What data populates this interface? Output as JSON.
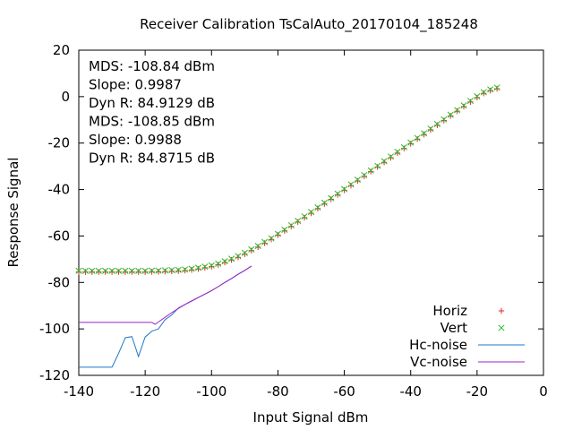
{
  "chart_data": {
    "type": "scatter",
    "title": "Receiver Calibration TsCalAuto_20170104_185248",
    "xlabel": "Input Signal dBm",
    "ylabel": "Response Signal",
    "xlim": [
      -140,
      0
    ],
    "ylim": [
      -120,
      20
    ],
    "xticks": [
      -140,
      -120,
      -100,
      -80,
      -60,
      -40,
      -20,
      0
    ],
    "yticks": [
      -120,
      -100,
      -80,
      -60,
      -40,
      -20,
      0,
      20
    ],
    "grid": false,
    "legend_position": "bottom-right",
    "annotations": [
      {
        "text": "MDS: -108.84 dBm",
        "color": "#e8242a"
      },
      {
        "text": "Slope: 0.9987",
        "color": "#e8242a"
      },
      {
        "text": "Dyn R: 84.9129 dB",
        "color": "#e8242a"
      },
      {
        "text": "MDS: -108.85 dBm",
        "color": "#2ab82a"
      },
      {
        "text": "Slope: 0.9988",
        "color": "#2ab82a"
      },
      {
        "text": "Dyn R: 84.8715 dB",
        "color": "#2ab82a"
      }
    ],
    "series": [
      {
        "name": "Horiz",
        "kind": "points",
        "marker": "plus",
        "color": "#e8242a",
        "x": [
          -140,
          -138,
          -136,
          -134,
          -132,
          -130,
          -128,
          -126,
          -124,
          -122,
          -120,
          -118,
          -116,
          -114,
          -112,
          -110,
          -108,
          -106,
          -104,
          -102,
          -100,
          -98,
          -96,
          -94,
          -92,
          -90,
          -88,
          -86,
          -84,
          -82,
          -80,
          -78,
          -76,
          -74,
          -72,
          -70,
          -68,
          -66,
          -64,
          -62,
          -60,
          -58,
          -56,
          -54,
          -52,
          -50,
          -48,
          -46,
          -44,
          -42,
          -40,
          -38,
          -36,
          -34,
          -32,
          -30,
          -28,
          -26,
          -24,
          -22,
          -20,
          -18,
          -16,
          -14
        ],
        "y": [
          -75.5,
          -75.5,
          -75.5,
          -75.5,
          -75.5,
          -75.5,
          -75.5,
          -75.5,
          -75.5,
          -75.5,
          -75.5,
          -75.4,
          -75.4,
          -75.3,
          -75.2,
          -75.1,
          -74.9,
          -74.6,
          -74.2,
          -73.7,
          -73.2,
          -72.4,
          -71.4,
          -70.3,
          -69.2,
          -67.8,
          -66.3,
          -64.8,
          -63.1,
          -61.5,
          -59.6,
          -57.8,
          -55.9,
          -54.0,
          -52.1,
          -50.2,
          -48.2,
          -46.2,
          -44.2,
          -42.3,
          -40.3,
          -38.3,
          -36.3,
          -34.3,
          -32.3,
          -30.3,
          -28.3,
          -26.3,
          -24.3,
          -22.3,
          -20.3,
          -18.3,
          -16.3,
          -14.3,
          -12.3,
          -10.3,
          -8.3,
          -6.3,
          -4.3,
          -2.3,
          -0.4,
          1.4,
          2.6,
          3.4
        ]
      },
      {
        "name": "Vert",
        "kind": "points",
        "marker": "cross",
        "color": "#2ab82a",
        "x": [
          -140,
          -138,
          -136,
          -134,
          -132,
          -130,
          -128,
          -126,
          -124,
          -122,
          -120,
          -118,
          -116,
          -114,
          -112,
          -110,
          -108,
          -106,
          -104,
          -102,
          -100,
          -98,
          -96,
          -94,
          -92,
          -90,
          -88,
          -86,
          -84,
          -82,
          -80,
          -78,
          -76,
          -74,
          -72,
          -70,
          -68,
          -66,
          -64,
          -62,
          -60,
          -58,
          -56,
          -54,
          -52,
          -50,
          -48,
          -46,
          -44,
          -42,
          -40,
          -38,
          -36,
          -34,
          -32,
          -30,
          -28,
          -26,
          -24,
          -22,
          -20,
          -18,
          -16,
          -14
        ],
        "y": [
          -75.0,
          -75.0,
          -75.0,
          -75.0,
          -75.0,
          -75.0,
          -75.0,
          -75.0,
          -75.0,
          -75.0,
          -75.0,
          -74.9,
          -74.9,
          -74.8,
          -74.7,
          -74.6,
          -74.4,
          -74.1,
          -73.7,
          -73.2,
          -72.7,
          -71.9,
          -70.9,
          -69.8,
          -68.7,
          -67.3,
          -65.8,
          -64.3,
          -62.6,
          -61.0,
          -59.1,
          -57.3,
          -55.4,
          -53.5,
          -51.6,
          -49.7,
          -47.7,
          -45.7,
          -43.7,
          -41.8,
          -39.8,
          -37.8,
          -35.8,
          -33.8,
          -31.8,
          -29.8,
          -27.8,
          -25.8,
          -23.8,
          -21.8,
          -19.8,
          -17.8,
          -15.8,
          -13.8,
          -11.8,
          -9.8,
          -7.8,
          -5.8,
          -3.8,
          -1.8,
          0.1,
          1.9,
          3.1,
          3.9
        ]
      },
      {
        "name": "Hc-noise",
        "kind": "line",
        "color": "#1f77c8",
        "x": [
          -140,
          -138,
          -136,
          -134,
          -132,
          -130,
          -128,
          -126,
          -124,
          -122,
          -120,
          -118,
          -116,
          -114,
          -112,
          -110,
          -108,
          -106,
          -104,
          -102,
          -100,
          -98,
          -96,
          -94,
          -92,
          -90,
          -88
        ],
        "y": [
          -116.5,
          -116.5,
          -116.5,
          -116.5,
          -116.5,
          -116.5,
          -110.5,
          -103.8,
          -103.3,
          -111.9,
          -103.5,
          -101.0,
          -100.0,
          -96.0,
          -94.0,
          -91.0,
          -89.5,
          -88.0,
          -86.5,
          -85.0,
          -83.5,
          -81.8,
          -80.0,
          -78.3,
          -76.5,
          -74.8,
          -73.0
        ]
      },
      {
        "name": "Vc-noise",
        "kind": "line",
        "color": "#a020c8",
        "x": [
          -140,
          -138,
          -136,
          -134,
          -132,
          -130,
          -128,
          -126,
          -124,
          -122,
          -120,
          -118,
          -117,
          -116,
          -114,
          -112,
          -110,
          -108,
          -106,
          -104,
          -102,
          -100,
          -98,
          -96,
          -94,
          -92,
          -90,
          -88
        ],
        "y": [
          -97.2,
          -97.2,
          -97.2,
          -97.2,
          -97.2,
          -97.2,
          -97.2,
          -97.2,
          -97.2,
          -97.2,
          -97.2,
          -97.2,
          -98.0,
          -97.0,
          -95.0,
          -93.0,
          -91.2,
          -89.5,
          -88.0,
          -86.5,
          -85.0,
          -83.5,
          -81.8,
          -80.0,
          -78.3,
          -76.5,
          -74.8,
          -73.0
        ]
      }
    ]
  }
}
